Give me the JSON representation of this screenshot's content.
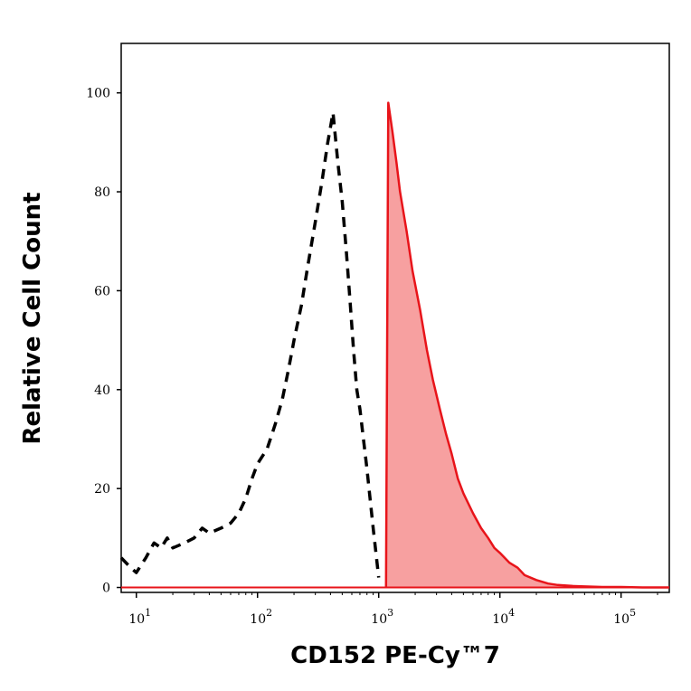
{
  "chart_data": {
    "type": "area",
    "title": "",
    "xlabel": "CD152 PE-Cy™7",
    "ylabel": "Relative Cell Count",
    "x_scale": "log",
    "xlim": [
      7.5,
      250000
    ],
    "ylim": [
      -1,
      110
    ],
    "x_ticks": [
      {
        "value": 10,
        "base": "10",
        "exp": "1"
      },
      {
        "value": 100,
        "base": "10",
        "exp": "2"
      },
      {
        "value": 1000,
        "base": "10",
        "exp": "3"
      },
      {
        "value": 10000,
        "base": "10",
        "exp": "4"
      },
      {
        "value": 100000,
        "base": "10",
        "exp": "5"
      }
    ],
    "y_ticks": [
      0,
      20,
      40,
      60,
      80,
      100
    ],
    "series": [
      {
        "style": "dashed",
        "color": "#000000",
        "filled": false,
        "x": [
          7.5,
          9,
          10,
          12,
          14,
          16,
          18,
          20,
          25,
          30,
          35,
          40,
          50,
          60,
          70,
          80,
          90,
          100,
          120,
          140,
          160,
          180,
          200,
          230,
          260,
          300,
          340,
          380,
          420,
          460,
          500,
          540,
          580,
          620,
          660,
          700,
          800,
          900,
          1000
        ],
        "y": [
          6,
          4,
          3,
          6,
          9,
          8,
          10,
          8,
          9,
          10,
          12,
          11,
          12,
          13,
          15,
          18,
          22,
          25,
          28,
          33,
          38,
          44,
          50,
          57,
          65,
          74,
          82,
          90,
          96,
          86,
          78,
          68,
          58,
          48,
          40,
          36,
          24,
          12,
          2
        ]
      },
      {
        "style": "solid",
        "color": "#e8141a",
        "fill": "#f7a0a0",
        "filled": true,
        "x": [
          1150,
          1200,
          1300,
          1400,
          1500,
          1700,
          1900,
          2200,
          2500,
          2800,
          3200,
          3600,
          4000,
          4500,
          5000,
          6000,
          7000,
          8000,
          9000,
          10000,
          12000,
          14000,
          16000,
          20000,
          25000,
          30000,
          40000,
          50000,
          70000,
          100000,
          150000,
          250000
        ],
        "y": [
          0,
          98,
          92,
          86,
          80,
          72,
          64,
          56,
          48,
          42,
          36,
          31,
          27,
          22,
          19,
          15,
          12,
          10,
          8,
          7,
          5,
          4,
          2.5,
          1.5,
          0.8,
          0.5,
          0.3,
          0.2,
          0.1,
          0.1,
          0,
          0
        ]
      }
    ]
  }
}
